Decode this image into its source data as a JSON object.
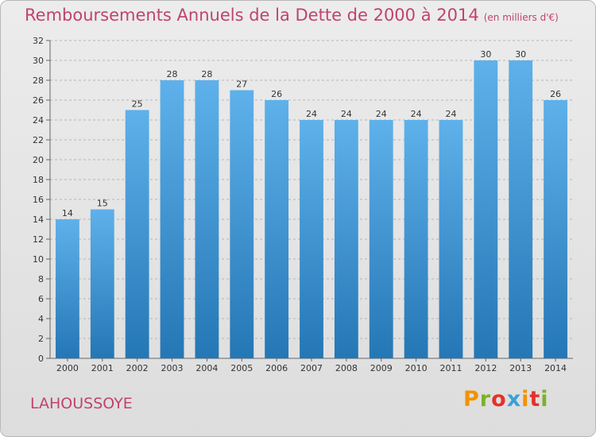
{
  "header": {
    "title": "Remboursements Annuels de la Dette de 2000 à 2014",
    "subtitle": "(en milliers d'€)"
  },
  "footer": {
    "commune": "LAHOUSSOYE",
    "logo_text": "Proxiti",
    "logo_colors": [
      "#f39200",
      "#7cb22a",
      "#e4322b",
      "#3aa0d8",
      "#f39200",
      "#e4322b",
      "#7cb22a"
    ]
  },
  "colors": {
    "title": "#c0436f",
    "bar_top": "#5eb1ea",
    "bar_bottom": "#2477b5",
    "grid": "#b5b5b5"
  },
  "chart_data": {
    "type": "bar",
    "categories": [
      "2000",
      "2001",
      "2002",
      "2003",
      "2004",
      "2005",
      "2006",
      "2007",
      "2008",
      "2009",
      "2010",
      "2011",
      "2012",
      "2013",
      "2014"
    ],
    "values": [
      14,
      15,
      25,
      28,
      28,
      27,
      26,
      24,
      24,
      24,
      24,
      24,
      30,
      30,
      26
    ],
    "ylim": [
      0,
      32
    ],
    "yticks": [
      0,
      2,
      4,
      6,
      8,
      10,
      12,
      14,
      16,
      18,
      20,
      22,
      24,
      26,
      28,
      30,
      32
    ],
    "grid": true,
    "grid_style": "dashed",
    "data_labels": true
  }
}
